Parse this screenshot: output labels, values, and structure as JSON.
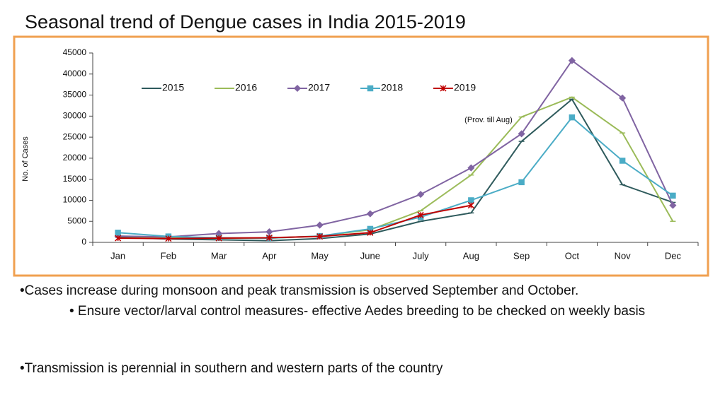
{
  "chart_data": {
    "type": "line",
    "title": "Seasonal trend of Dengue cases in India  2015-2019",
    "y_label": "No. of Cases",
    "annotation": "(Prov. till  Aug)",
    "categories": [
      "Jan",
      "Feb",
      "Mar",
      "Apr",
      "May",
      "June",
      "July",
      "Aug",
      "Sep",
      "Oct",
      "Nov",
      "Dec"
    ],
    "ylim": [
      0,
      45000
    ],
    "yticks": [
      0,
      5000,
      10000,
      15000,
      20000,
      25000,
      30000,
      35000,
      40000,
      45000
    ],
    "grid": false,
    "legend": "top",
    "series": [
      {
        "name": "2015",
        "color": "#2e5a5c",
        "marker": "dash",
        "values": [
          1200,
          800,
          600,
          400,
          900,
          2000,
          5000,
          7000,
          24000,
          34000,
          13700,
          9500
        ]
      },
      {
        "name": "2016",
        "color": "#9bbb59",
        "marker": "dash",
        "values": [
          1500,
          1000,
          1000,
          1000,
          1500,
          3000,
          7500,
          16000,
          29800,
          34500,
          26000,
          5000
        ]
      },
      {
        "name": "2017",
        "color": "#8064a2",
        "marker": "diamond",
        "values": [
          1500,
          1300,
          2100,
          2500,
          4100,
          6800,
          11400,
          17700,
          25800,
          43200,
          34300,
          8800
        ]
      },
      {
        "name": "2018",
        "color": "#4bacc6",
        "marker": "square",
        "values": [
          2300,
          1400,
          1100,
          1000,
          1500,
          3200,
          6000,
          10000,
          14300,
          29700,
          19400,
          11100
        ]
      },
      {
        "name": "2019",
        "color": "#c00000",
        "marker": "x",
        "values": [
          1000,
          900,
          1000,
          1100,
          1400,
          2300,
          6500,
          8800,
          null,
          null,
          null,
          null
        ]
      }
    ]
  },
  "bullets": [
    "•Cases increase during monsoon and peak transmission is observed September and October.",
    "•  Ensure vector/larval control measures- effective Aedes breeding to be checked on weekly basis",
    "•Transmission is perennial in southern and western parts of the country"
  ]
}
